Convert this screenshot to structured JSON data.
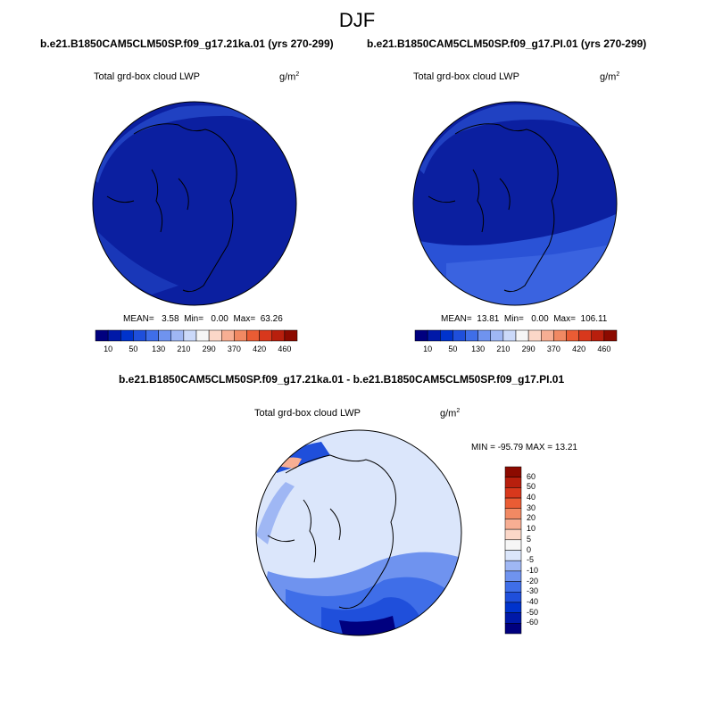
{
  "season": "DJF",
  "panels": [
    {
      "case_title": "b.e21.B1850CAM5CLM50SP.f09_g17.21ka.01 (yrs 270-299)",
      "variable": "Total grd-box cloud LWP",
      "units": "g/m",
      "units_sup": "2",
      "stats": {
        "mean_label": "MEAN=",
        "mean": "3.58",
        "min_label": "Min=",
        "min": "0.00",
        "max_label": "Max=",
        "max": "63.26"
      }
    },
    {
      "case_title": "b.e21.B1850CAM5CLM50SP.f09_g17.PI.01 (yrs 270-299)",
      "variable": "Total grd-box cloud LWP",
      "units": "g/m",
      "units_sup": "2",
      "stats": {
        "mean_label": "MEAN=",
        "mean": "13.81",
        "min_label": "Min=",
        "min": "0.00",
        "max_label": "Max=",
        "max": "106.11"
      }
    }
  ],
  "top_colorbar": {
    "labels": [
      "10",
      "50",
      "130",
      "210",
      "290",
      "370",
      "420",
      "460"
    ],
    "colors": [
      "#00007f",
      "#0019a8",
      "#0033cc",
      "#1f4fdb",
      "#3f6ee8",
      "#6f93ef",
      "#9fb7f4",
      "#cbd9f9",
      "#f6f6f6",
      "#fbd7c8",
      "#f7ae93",
      "#f18963",
      "#ea5c34",
      "#d8381c",
      "#b81f0d",
      "#8c0a00"
    ]
  },
  "difference": {
    "title": "b.e21.B1850CAM5CLM50SP.f09_g17.21ka.01 - b.e21.B1850CAM5CLM50SP.f09_g17.PI.01",
    "variable": "Total grd-box cloud LWP",
    "units": "g/m",
    "units_sup": "2",
    "minmax": "MIN = -95.79 MAX =  13.21",
    "colorbar": {
      "labels": [
        "60",
        "50",
        "40",
        "30",
        "20",
        "10",
        "5",
        "0",
        "-5",
        "-10",
        "-20",
        "-30",
        "-40",
        "-50",
        "-60"
      ],
      "colors": [
        "#8c0a00",
        "#b81f0d",
        "#d8381c",
        "#ea5c34",
        "#f18963",
        "#f7ae93",
        "#fbd7c8",
        "#f6f6f6",
        "#dbe6fb",
        "#9fb7f4",
        "#6f93ef",
        "#3f6ee8",
        "#1f4fdb",
        "#0033cc",
        "#0019a8",
        "#00007f"
      ]
    }
  },
  "palette": {
    "deep_blue": "#0b1fa0",
    "mid_blue": "#2a52d6",
    "light_blue": "#dbe6fb",
    "coast": "#000000"
  }
}
